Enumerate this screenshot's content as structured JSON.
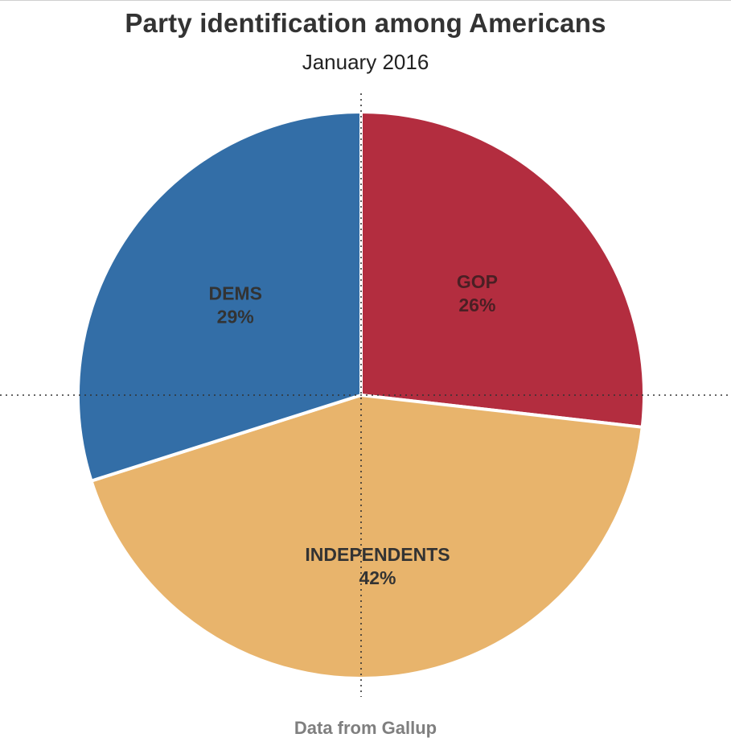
{
  "chart_data": {
    "type": "pie",
    "title": "Party identification among Americans",
    "subtitle": "January 2016",
    "footnote": "Data from Gallup",
    "slices": [
      {
        "label": "GOP",
        "value": 26,
        "value_label": "26%",
        "color": "#b32d3f",
        "label_color": "#4a1f24"
      },
      {
        "label": "INDEPENDENTS",
        "value": 42,
        "value_label": "42%",
        "color": "#e8b46c",
        "label_color": "#333333"
      },
      {
        "label": "DEMS",
        "value": 29,
        "value_label": "29%",
        "color": "#336ea7",
        "label_color": "#333333"
      }
    ],
    "start_position": "12 o'clock",
    "direction": "clockwise",
    "reference_lines": "dotted crosshair through the pie center",
    "legend": "none"
  }
}
